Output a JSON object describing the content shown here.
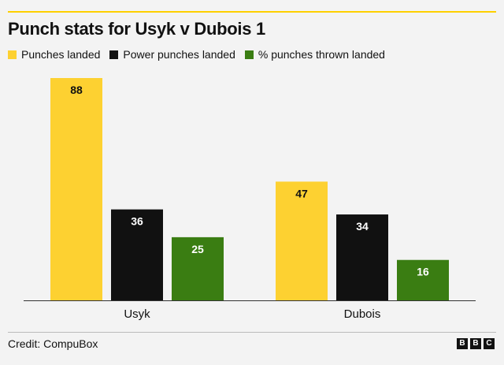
{
  "chart_data": {
    "type": "bar",
    "title": "Punch stats for Usyk v Dubois 1",
    "categories": [
      "Usyk",
      "Dubois"
    ],
    "series": [
      {
        "name": "Punches landed",
        "values": [
          88,
          47
        ],
        "color": "#fdd131",
        "label_color": "#111111"
      },
      {
        "name": "Power punches landed",
        "values": [
          36,
          34
        ],
        "color": "#111111",
        "label_color": "#ffffff"
      },
      {
        "name": "% punches thrown landed",
        "values": [
          25,
          16
        ],
        "color": "#3a7d12",
        "label_color": "#ffffff"
      }
    ],
    "ylim": [
      0,
      88
    ],
    "grid": false,
    "legend_position": "top-left"
  },
  "footer": {
    "credit": "Credit: CompuBox",
    "logo_letters": [
      "B",
      "B",
      "C"
    ]
  }
}
